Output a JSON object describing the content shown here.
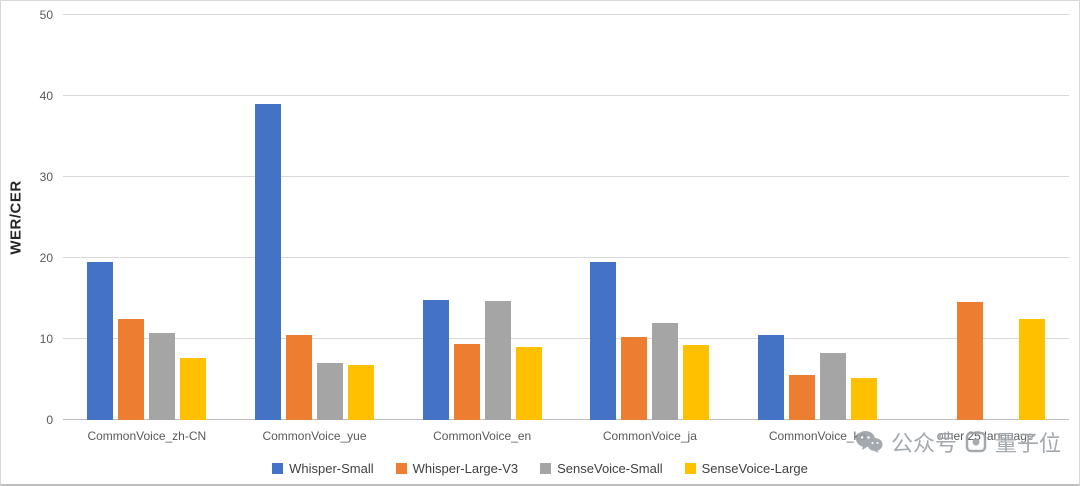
{
  "chart_data": {
    "type": "bar",
    "title": "",
    "xlabel": "",
    "ylabel": "WER/CER",
    "ylim": [
      0,
      50
    ],
    "yticks": [
      0,
      10,
      20,
      30,
      40,
      50
    ],
    "grid": true,
    "legend_position": "bottom",
    "categories": [
      "CommonVoice_zh-CN",
      "CommonVoice_yue",
      "CommonVoice_en",
      "CommonVoice_ja",
      "CommonVoice_ko",
      "other 25 language"
    ],
    "series": [
      {
        "name": "Whisper-Small",
        "color": "#4472C4",
        "values": [
          19.5,
          39.0,
          14.8,
          19.5,
          10.5,
          0
        ]
      },
      {
        "name": "Whisper-Large-V3",
        "color": "#ED7D31",
        "values": [
          12.5,
          10.5,
          9.4,
          10.3,
          5.6,
          14.6
        ]
      },
      {
        "name": "SenseVoice-Small",
        "color": "#A5A5A5",
        "values": [
          10.7,
          7.1,
          14.7,
          12.0,
          8.3,
          0
        ]
      },
      {
        "name": "SenseVoice-Large",
        "color": "#FFC000",
        "values": [
          7.7,
          6.8,
          9.0,
          9.2,
          5.2,
          12.5
        ]
      }
    ]
  },
  "watermark": {
    "label1": "公众号",
    "label2": "量子位"
  }
}
